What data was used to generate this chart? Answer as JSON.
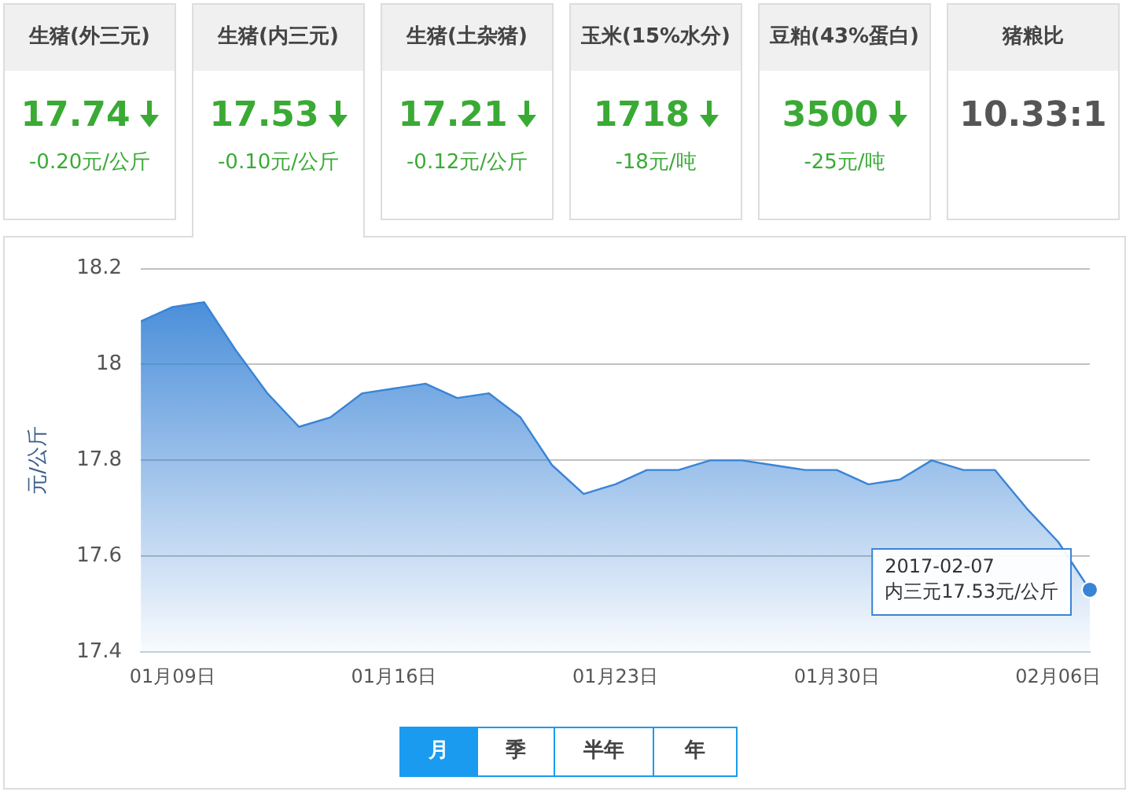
{
  "chart_data": [
    {
      "type": "other",
      "categories": [
        "生猪(外三元)",
        "生猪(内三元)",
        "生猪(土杂猪)",
        "玉米(15%水分)",
        "豆粕(43%蛋白)",
        "猪粮比"
      ],
      "value_labels": [
        "17.74",
        "17.53",
        "17.21",
        "1718",
        "3500",
        "10.33:1"
      ],
      "annotations": [
        "-0.20元/公斤",
        "-0.10元/公斤",
        "-0.12元/公斤",
        "-18元/吨",
        "-25元/吨"
      ]
    },
    {
      "type": "area",
      "ylabel": "元/公斤",
      "x": [
        "2017-01-08",
        "2017-01-09",
        "2017-01-10",
        "2017-01-11",
        "2017-01-12",
        "2017-01-13",
        "2017-01-14",
        "2017-01-15",
        "2017-01-16",
        "2017-01-17",
        "2017-01-18",
        "2017-01-19",
        "2017-01-20",
        "2017-01-21",
        "2017-01-22",
        "2017-01-23",
        "2017-01-24",
        "2017-01-25",
        "2017-01-26",
        "2017-01-27",
        "2017-01-28",
        "2017-01-29",
        "2017-01-30",
        "2017-01-31",
        "2017-02-01",
        "2017-02-02",
        "2017-02-03",
        "2017-02-04",
        "2017-02-05",
        "2017-02-06",
        "2017-02-07"
      ],
      "series": [
        {
          "color": "#3a84d6",
          "values": [
            18.09,
            18.12,
            18.13,
            18.03,
            17.94,
            17.87,
            17.89,
            17.94,
            17.95,
            17.96,
            17.93,
            17.94,
            17.89,
            17.79,
            17.73,
            17.75,
            17.78,
            17.78,
            17.8,
            17.8,
            17.79,
            17.78,
            17.78,
            17.75,
            17.76,
            17.8,
            17.78,
            17.78,
            17.7,
            17.63,
            17.53
          ]
        }
      ],
      "xlim": [
        "2017-01-08",
        "2017-02-07"
      ],
      "xticks": [
        {
          "value": "2017-01-09",
          "label": "01月09日"
        },
        {
          "value": "2017-01-16",
          "label": "01月16日"
        },
        {
          "value": "2017-01-23",
          "label": "01月23日"
        },
        {
          "value": "2017-01-30",
          "label": "01月30日"
        },
        {
          "value": "2017-02-06",
          "label": "02月06日"
        }
      ],
      "ylim": [
        17.4,
        18.2
      ],
      "yticks": [
        17.4,
        17.6,
        17.8,
        {
          "value": 18,
          "label": "18"
        },
        18.2
      ],
      "grid": "y",
      "legend": false,
      "marker": "none",
      "line_style": "solid",
      "annotations": [
        {
          "text": "2017-02-07\n内三元17.53元/公斤",
          "x": "2017-02-07",
          "y": 17.53
        },
        "月",
        "季",
        "半年",
        "年"
      ]
    }
  ]
}
